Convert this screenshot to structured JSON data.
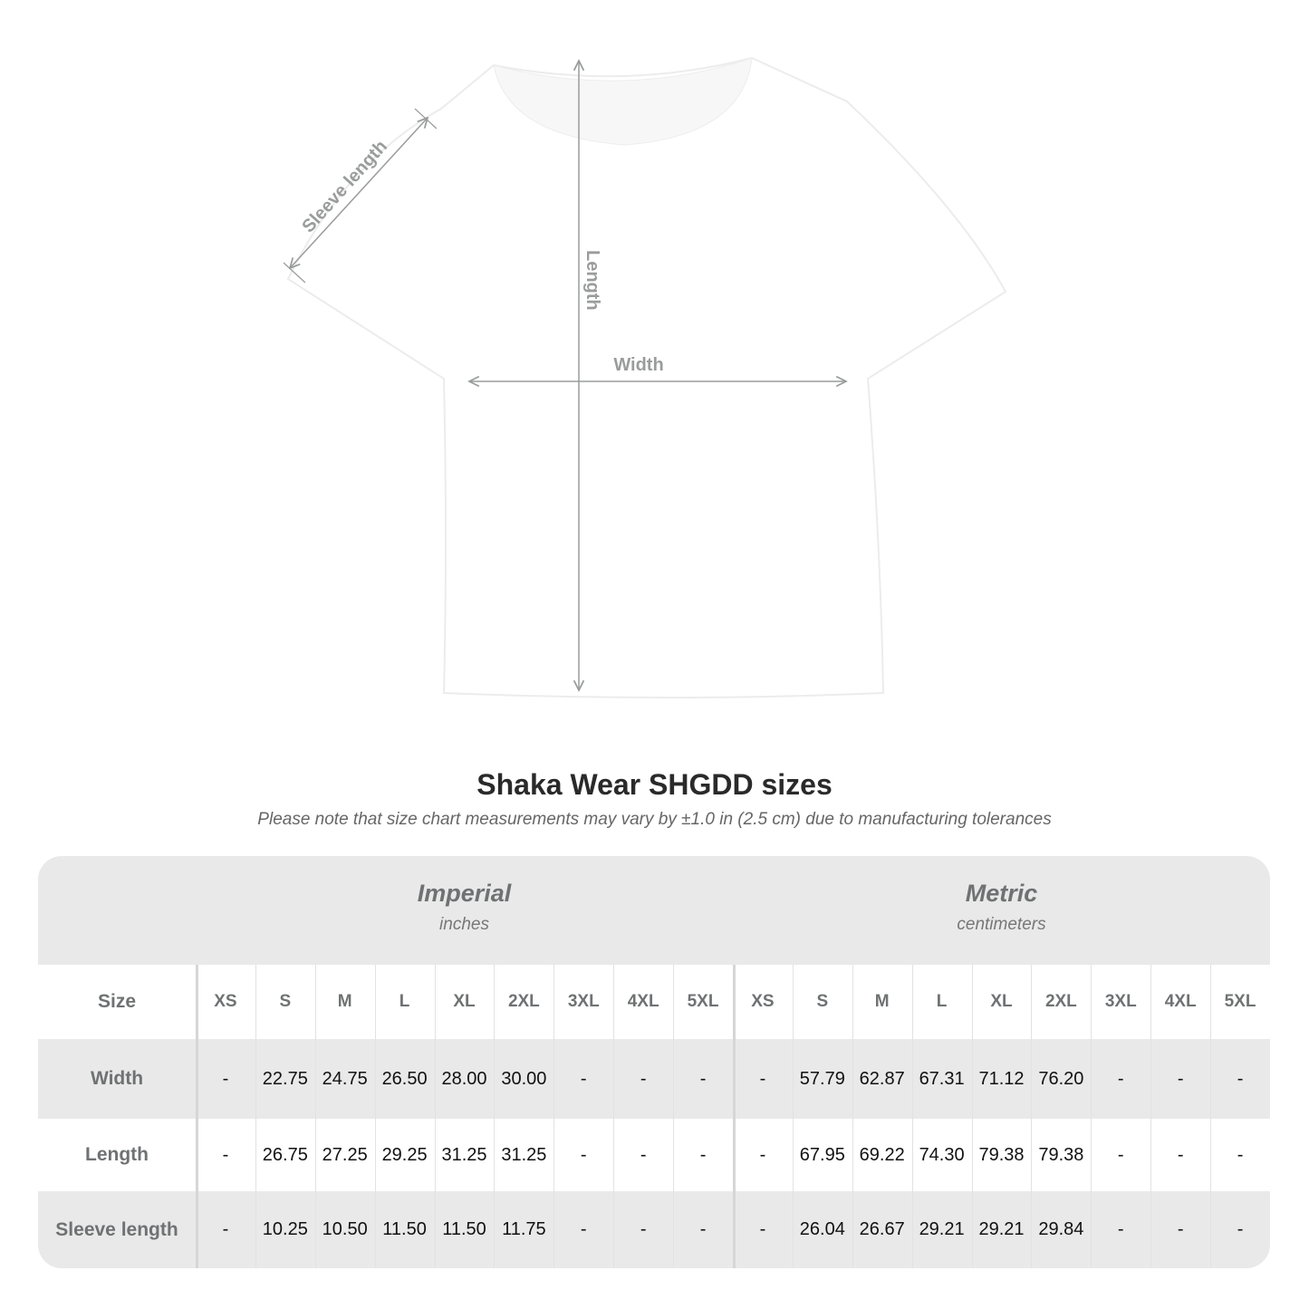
{
  "diagram": {
    "labels": {
      "sleeve": "Sleeve length",
      "length": "Length",
      "width": "Width"
    },
    "shirt_color": "#ffffff",
    "guide_color": "#9a9c9c"
  },
  "title": "Shaka Wear SHGDD sizes",
  "note": "Please note that size chart measurements may vary by ±1.0 in (2.5 cm) due to manufacturing tolerances",
  "table": {
    "groups": [
      {
        "title": "Imperial",
        "subtitle": "inches"
      },
      {
        "title": "Metric",
        "subtitle": "centimeters"
      }
    ],
    "size_header": "Size",
    "sizes": [
      "XS",
      "S",
      "M",
      "L",
      "XL",
      "2XL",
      "3XL",
      "4XL",
      "5XL"
    ],
    "rows": [
      {
        "label": "Width",
        "imperial": [
          "-",
          "22.75",
          "24.75",
          "26.50",
          "28.00",
          "30.00",
          "-",
          "-",
          "-"
        ],
        "metric": [
          "-",
          "57.79",
          "62.87",
          "67.31",
          "71.12",
          "76.20",
          "-",
          "-",
          "-"
        ]
      },
      {
        "label": "Length",
        "imperial": [
          "-",
          "26.75",
          "27.25",
          "29.25",
          "31.25",
          "31.25",
          "-",
          "-",
          "-"
        ],
        "metric": [
          "-",
          "67.95",
          "69.22",
          "74.30",
          "79.38",
          "79.38",
          "-",
          "-",
          "-"
        ]
      },
      {
        "label": "Sleeve length",
        "imperial": [
          "-",
          "10.25",
          "10.50",
          "11.50",
          "11.50",
          "11.75",
          "-",
          "-",
          "-"
        ],
        "metric": [
          "-",
          "26.04",
          "26.67",
          "29.21",
          "29.21",
          "29.84",
          "-",
          "-",
          "-"
        ]
      }
    ],
    "band_color": "#e9e9e9",
    "label_color": "#6f7273"
  }
}
